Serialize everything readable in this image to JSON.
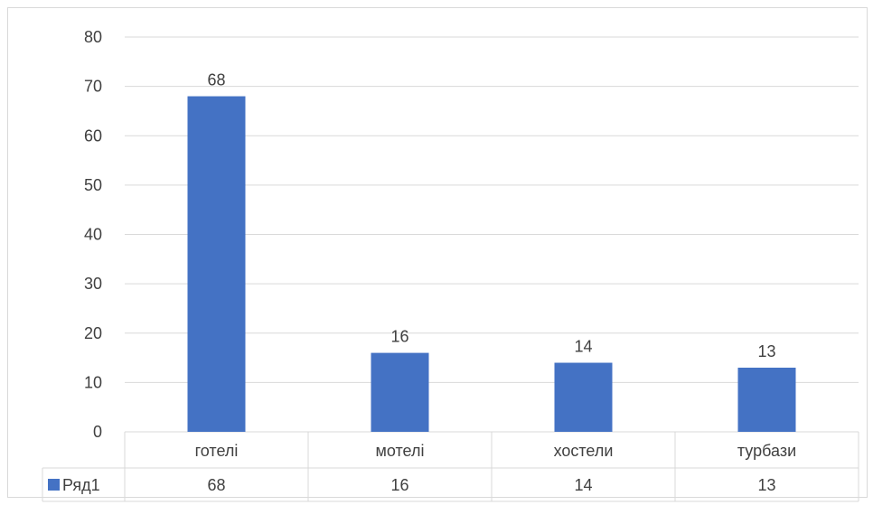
{
  "chart_data": {
    "type": "bar",
    "categories": [
      "готелі",
      "мотелі",
      "хостели",
      "турбази"
    ],
    "series": [
      {
        "name": "Ряд1",
        "values": [
          68,
          16,
          14,
          13
        ]
      }
    ],
    "ylim": [
      0,
      80
    ],
    "yticks": [
      0,
      10,
      20,
      30,
      40,
      50,
      60,
      70,
      80
    ],
    "grid": true,
    "data_labels": true,
    "data_table": true,
    "colors": {
      "bar": "#4472c4",
      "grid": "#d9d9d9",
      "text": "#404040"
    }
  }
}
